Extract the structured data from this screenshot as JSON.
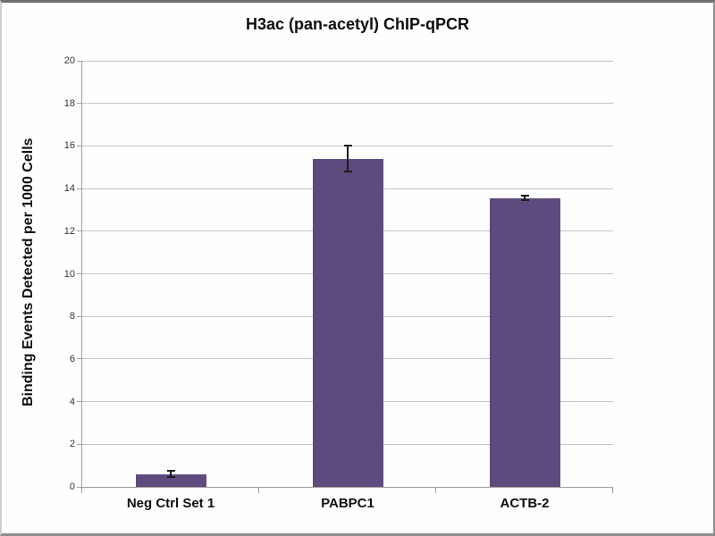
{
  "chart_data": {
    "type": "bar",
    "title": "H3ac (pan-acetyl) ChIP-qPCR",
    "ylabel": "Binding Events Detected per 1000 Cells",
    "xlabel": "",
    "categories": [
      "Neg Ctrl Set 1",
      "PABPC1",
      "ACTB-2"
    ],
    "values": [
      0.6,
      15.4,
      13.55
    ],
    "error_bars": [
      0.2,
      0.65,
      0.15
    ],
    "ylim": [
      0,
      20
    ],
    "ytick_step": 2,
    "ytick_labels": [
      "0",
      "2",
      "4",
      "6",
      "8",
      "10",
      "12",
      "14",
      "16",
      "18",
      "20"
    ],
    "grid": true,
    "legend_position": "none",
    "colors": {
      "bar_fill": "#5e4b7e",
      "gridline": "#c6c6c6",
      "axis": "#9d9d9d",
      "error_bar": "#1c1c1c",
      "tick_label": "#333333",
      "text": "#0f0f0f",
      "background": "#fefefe"
    }
  }
}
